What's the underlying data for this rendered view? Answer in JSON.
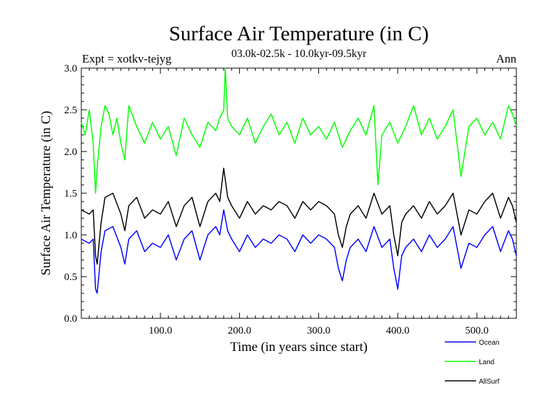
{
  "chart_data": {
    "type": "line",
    "title": "Surface Air Temperature (in C)",
    "subtitle": "03.0k-02.5k - 10.0kyr-09.5kyr",
    "expt_label": "Expt = xotkv-tejyg",
    "season_label": "Ann",
    "xlabel": "Time (in years since start)",
    "ylabel": "Surface Air Temperature (in C)",
    "xlim": [
      0,
      550
    ],
    "ylim": [
      0.0,
      3.0
    ],
    "x_ticks": [
      100,
      200,
      300,
      400,
      500
    ],
    "x_tick_labels": [
      "100.0",
      "200.0",
      "300.0",
      "400.0",
      "500.0"
    ],
    "y_ticks": [
      0.0,
      0.5,
      1.0,
      1.5,
      2.0,
      2.5,
      3.0
    ],
    "y_tick_labels": [
      "0.0",
      "0.5",
      "1.0",
      "1.5",
      "2.0",
      "2.5",
      "3.0"
    ],
    "legend_position": "bottom-right",
    "colors": {
      "Ocean": "#0000ff",
      "Land": "#00ff00",
      "AllSurf": "#000000"
    },
    "series": [
      {
        "name": "Ocean",
        "x": [
          0,
          10,
          15,
          18,
          20,
          25,
          30,
          40,
          50,
          55,
          60,
          70,
          80,
          90,
          100,
          110,
          120,
          130,
          140,
          150,
          160,
          170,
          175,
          180,
          185,
          190,
          200,
          210,
          220,
          230,
          240,
          250,
          260,
          270,
          280,
          290,
          300,
          310,
          320,
          325,
          330,
          335,
          340,
          350,
          360,
          370,
          380,
          390,
          395,
          400,
          405,
          410,
          420,
          430,
          440,
          450,
          460,
          470,
          480,
          490,
          500,
          510,
          520,
          530,
          540,
          545,
          550
        ],
        "values": [
          0.95,
          0.9,
          0.95,
          0.35,
          0.3,
          0.8,
          1.05,
          1.1,
          0.85,
          0.65,
          0.95,
          1.05,
          0.8,
          0.9,
          0.85,
          1.0,
          0.7,
          0.95,
          1.05,
          0.7,
          1.0,
          1.1,
          1.0,
          1.3,
          1.05,
          0.95,
          0.8,
          1.0,
          0.85,
          0.95,
          0.9,
          1.0,
          0.95,
          0.8,
          1.0,
          0.9,
          1.0,
          0.95,
          0.85,
          0.6,
          0.45,
          0.7,
          0.85,
          0.95,
          0.8,
          1.1,
          0.85,
          0.95,
          0.6,
          0.35,
          0.75,
          0.85,
          0.95,
          0.8,
          1.0,
          0.85,
          0.95,
          1.1,
          0.6,
          0.9,
          0.85,
          1.0,
          1.1,
          0.8,
          1.05,
          0.95,
          0.75
        ]
      },
      {
        "name": "Land",
        "x": [
          0,
          5,
          10,
          15,
          18,
          20,
          25,
          30,
          35,
          40,
          45,
          50,
          55,
          60,
          70,
          80,
          90,
          100,
          110,
          120,
          130,
          140,
          150,
          160,
          170,
          175,
          180,
          182,
          185,
          190,
          200,
          210,
          220,
          230,
          240,
          250,
          260,
          270,
          280,
          290,
          300,
          310,
          320,
          330,
          340,
          350,
          360,
          370,
          375,
          380,
          390,
          400,
          410,
          420,
          430,
          440,
          450,
          460,
          470,
          480,
          490,
          500,
          510,
          520,
          530,
          540,
          545,
          550
        ],
        "values": [
          2.35,
          2.2,
          2.5,
          2.1,
          1.5,
          1.8,
          2.3,
          2.55,
          2.45,
          2.2,
          2.4,
          2.1,
          1.9,
          2.55,
          2.3,
          2.1,
          2.35,
          2.15,
          2.3,
          1.95,
          2.4,
          2.2,
          2.05,
          2.35,
          2.25,
          2.4,
          2.5,
          3.0,
          2.4,
          2.3,
          2.2,
          2.4,
          2.1,
          2.3,
          2.45,
          2.2,
          2.35,
          2.1,
          2.4,
          2.2,
          2.3,
          2.15,
          2.35,
          2.05,
          2.25,
          2.4,
          2.2,
          2.55,
          1.6,
          2.2,
          2.35,
          2.1,
          2.3,
          2.55,
          2.2,
          2.4,
          2.15,
          2.3,
          2.5,
          1.7,
          2.3,
          2.4,
          2.2,
          2.35,
          2.15,
          2.55,
          2.45,
          2.3
        ]
      },
      {
        "name": "AllSurf",
        "x": [
          0,
          10,
          15,
          18,
          20,
          25,
          30,
          40,
          50,
          55,
          60,
          70,
          80,
          90,
          100,
          110,
          120,
          130,
          140,
          150,
          160,
          170,
          175,
          180,
          185,
          190,
          200,
          210,
          220,
          230,
          240,
          250,
          260,
          270,
          280,
          290,
          300,
          310,
          320,
          325,
          330,
          335,
          340,
          350,
          360,
          370,
          380,
          390,
          395,
          400,
          405,
          410,
          420,
          430,
          440,
          450,
          460,
          470,
          480,
          490,
          500,
          510,
          520,
          530,
          540,
          545,
          550
        ],
        "values": [
          1.3,
          1.25,
          1.3,
          0.75,
          0.65,
          1.15,
          1.45,
          1.5,
          1.25,
          1.05,
          1.35,
          1.45,
          1.2,
          1.3,
          1.25,
          1.4,
          1.1,
          1.35,
          1.45,
          1.1,
          1.4,
          1.5,
          1.4,
          1.8,
          1.45,
          1.35,
          1.2,
          1.4,
          1.25,
          1.35,
          1.3,
          1.4,
          1.35,
          1.2,
          1.4,
          1.3,
          1.4,
          1.35,
          1.25,
          1.0,
          0.85,
          1.1,
          1.25,
          1.35,
          1.2,
          1.5,
          1.25,
          1.35,
          1.0,
          0.75,
          1.15,
          1.25,
          1.35,
          1.2,
          1.4,
          1.25,
          1.35,
          1.5,
          1.0,
          1.3,
          1.25,
          1.4,
          1.5,
          1.2,
          1.45,
          1.35,
          1.15
        ]
      }
    ]
  }
}
